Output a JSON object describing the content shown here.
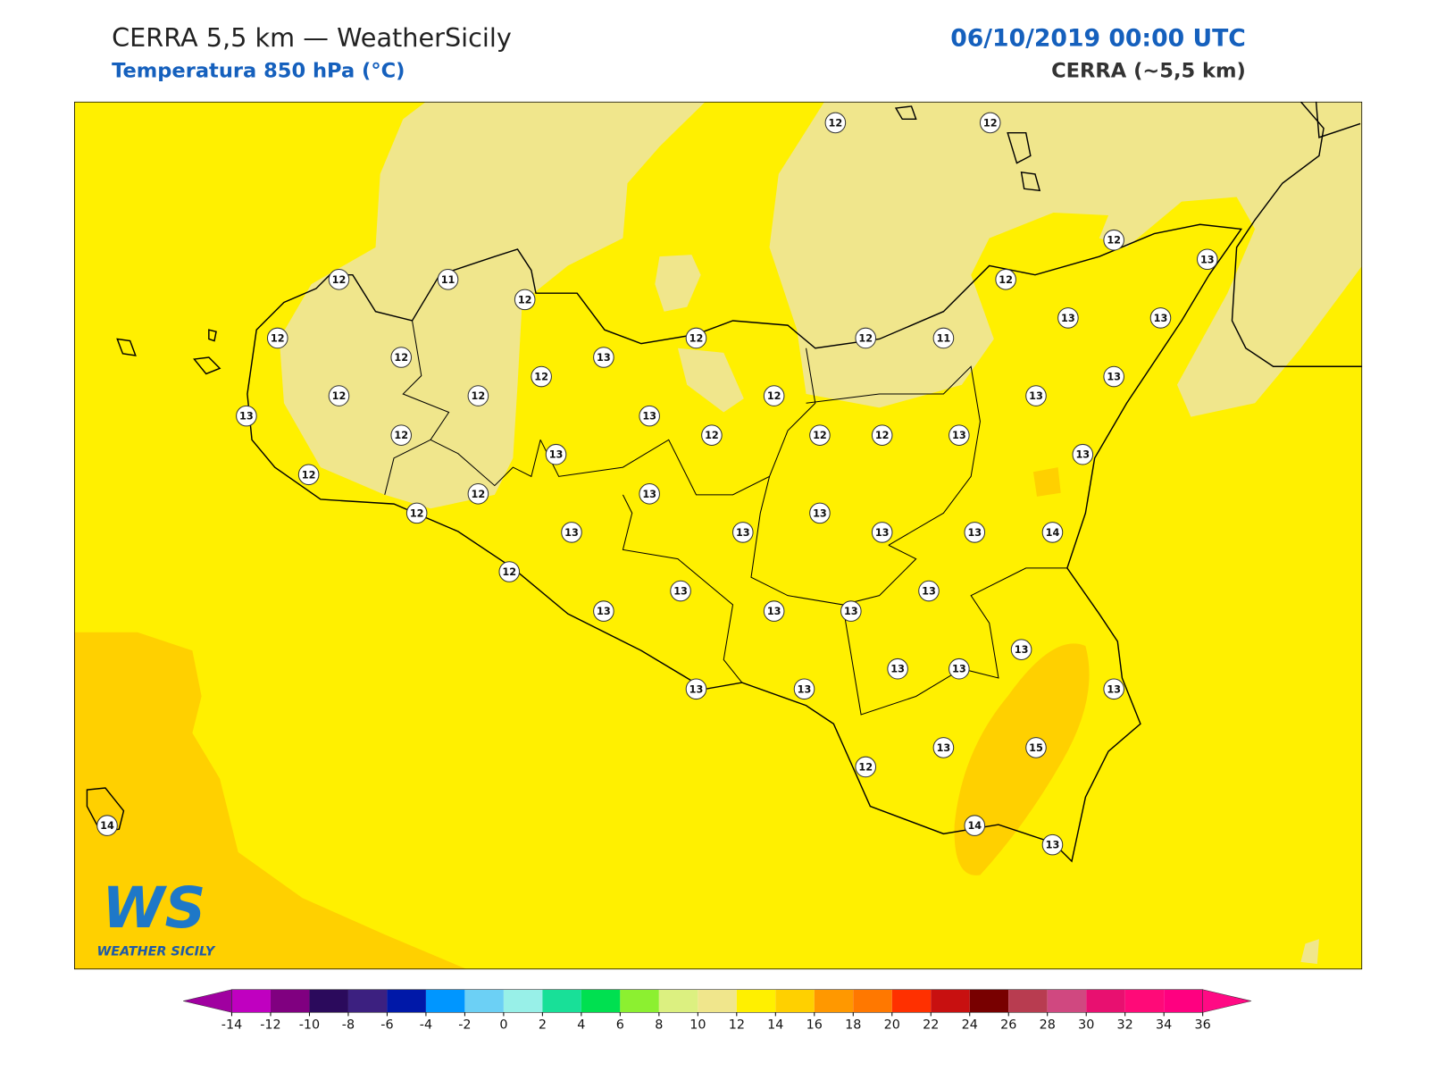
{
  "header": {
    "title": "CERRA 5,5 km — WeatherSicily",
    "subtitle": "Temperatura 850 hPa (°C)",
    "date": "06/10/2019 00:00 UTC",
    "model": "CERRA (~5,5 km)"
  },
  "stations": [
    12,
    12,
    12,
    11,
    12,
    12,
    12,
    13,
    12,
    12,
    11,
    12,
    12,
    13,
    13,
    13,
    12,
    12,
    12,
    13,
    12,
    13,
    13,
    13,
    12,
    12,
    12,
    12,
    13,
    13,
    13,
    12,
    12,
    13,
    12,
    13,
    13,
    13,
    13,
    13,
    14,
    12,
    13,
    13,
    13,
    13,
    13,
    13,
    13,
    13,
    13,
    13,
    13,
    13,
    15,
    12,
    14,
    14,
    13
  ],
  "logo": {
    "text": "WS",
    "caption": "WEATHER SICILY"
  },
  "colorbar": {
    "ticks": [
      -14,
      -12,
      -10,
      -8,
      -6,
      -4,
      -2,
      0,
      2,
      4,
      6,
      8,
      10,
      12,
      14,
      16,
      18,
      20,
      22,
      24,
      26,
      28,
      30,
      32,
      34,
      36
    ],
    "colors": [
      "#c000c0",
      "#800080",
      "#2b0a5c",
      "#3c2080",
      "#0018a8",
      "#0096ff",
      "#6cd0f5",
      "#98f0e8",
      "#18e098",
      "#00e050",
      "#8cf030",
      "#dcf080",
      "#f0e68c",
      "#fff000",
      "#ffd000",
      "#ff9800",
      "#ff7800",
      "#ff3000",
      "#c81010",
      "#780000",
      "#b83c50",
      "#d04880",
      "#e81070",
      "#ff0a78",
      "#ff0080"
    ],
    "extend_colors": [
      "#a000a0",
      "#ff0a84"
    ]
  }
}
